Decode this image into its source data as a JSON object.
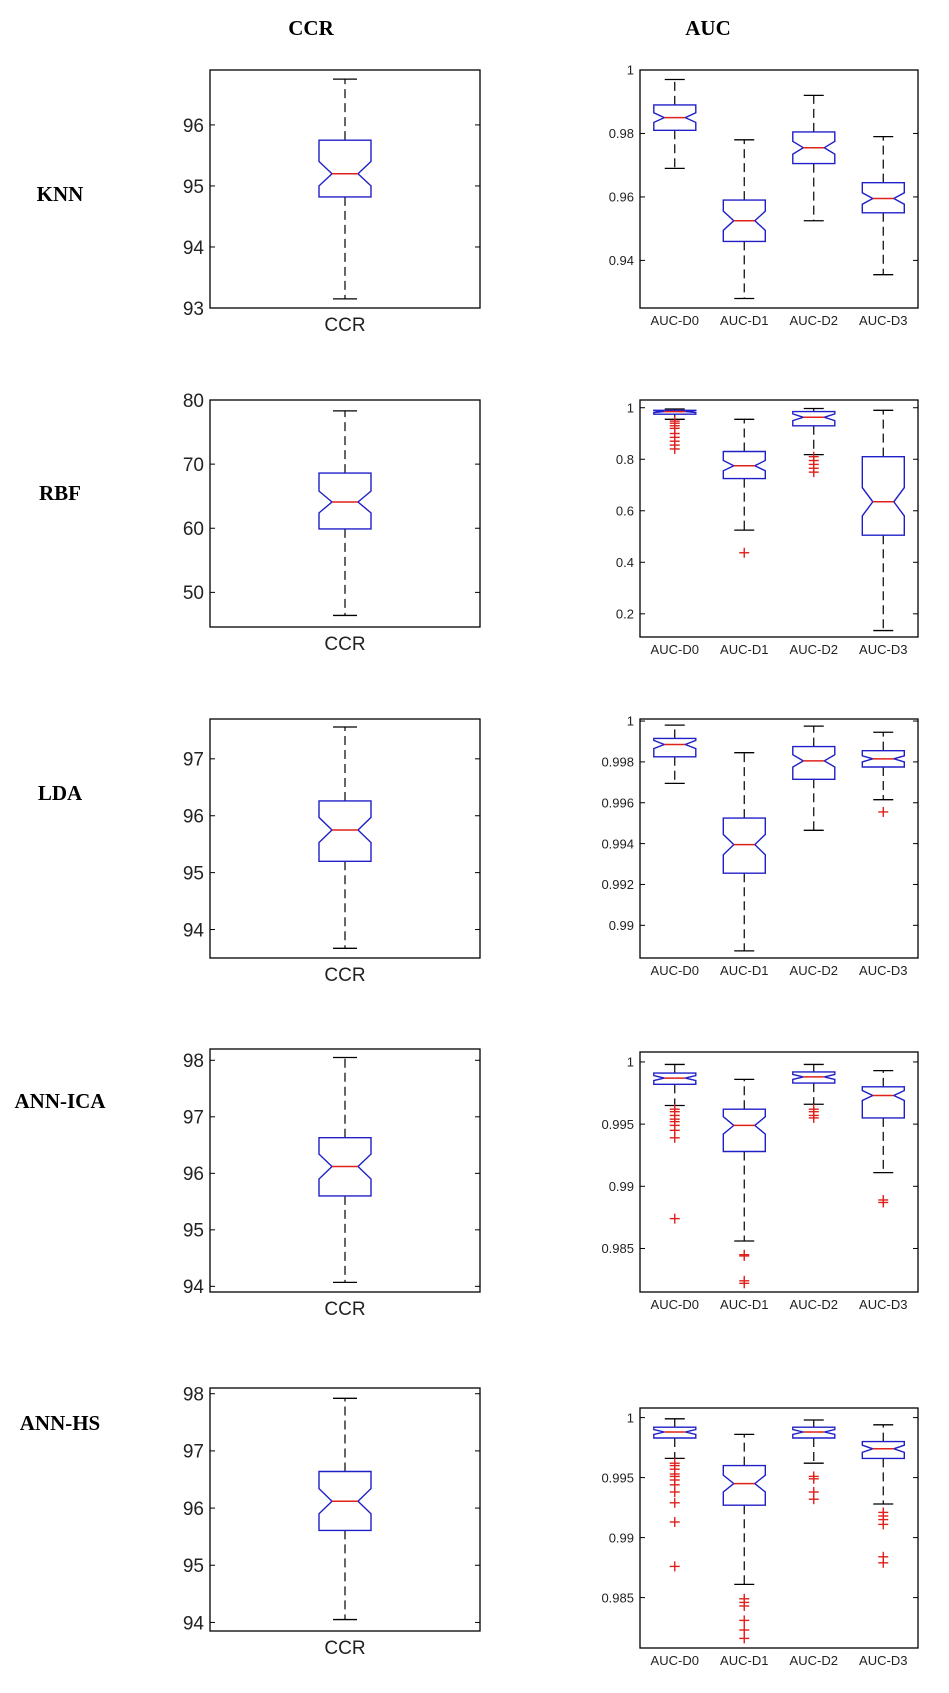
{
  "headers": {
    "ccr": "CCR",
    "auc": "AUC"
  },
  "rows": [
    {
      "label": "KNN"
    },
    {
      "label": "RBF"
    },
    {
      "label": "LDA"
    },
    {
      "label": "ANN-ICA"
    },
    {
      "label": "ANN-HS"
    }
  ],
  "colors": {
    "box": "#1f1fc8",
    "median": "#e0201a",
    "whisker": "#000000",
    "outlier": "#e0201a"
  },
  "chart_data": [
    {
      "type": "box",
      "title": "KNN CCR",
      "categories": [
        "CCR"
      ],
      "ylim": [
        93,
        96.9
      ],
      "ticks": [
        93,
        94,
        95,
        96
      ],
      "ticklabels": [
        "93",
        "94",
        "95",
        "96"
      ],
      "boxes": [
        {
          "q1": 94.82,
          "median": 95.2,
          "q3": 95.75,
          "notch": 0.2,
          "lo": 93.15,
          "hi": 96.75,
          "outliers": []
        }
      ]
    },
    {
      "type": "box",
      "title": "KNN AUC",
      "categories": [
        "AUC-D0",
        "AUC-D1",
        "AUC-D2",
        "AUC-D3"
      ],
      "ylim": [
        0.925,
        1.0
      ],
      "ticks": [
        0.94,
        0.96,
        0.98,
        1
      ],
      "ticklabels": [
        "0.94",
        "0.96",
        "0.98",
        "1"
      ],
      "boxes": [
        {
          "q1": 0.981,
          "median": 0.985,
          "q3": 0.989,
          "notch": 0.0015,
          "lo": 0.969,
          "hi": 0.997,
          "outliers": []
        },
        {
          "q1": 0.946,
          "median": 0.9525,
          "q3": 0.959,
          "notch": 0.003,
          "lo": 0.928,
          "hi": 0.978,
          "outliers": []
        },
        {
          "q1": 0.9705,
          "median": 0.9755,
          "q3": 0.9805,
          "notch": 0.002,
          "lo": 0.9525,
          "hi": 0.992,
          "outliers": []
        },
        {
          "q1": 0.955,
          "median": 0.9595,
          "q3": 0.9645,
          "notch": 0.0018,
          "lo": 0.9355,
          "hi": 0.979,
          "outliers": []
        }
      ]
    },
    {
      "type": "box",
      "title": "RBF CCR",
      "categories": [
        "CCR"
      ],
      "ylim": [
        44.6,
        80
      ],
      "ticks": [
        50,
        60,
        70,
        80
      ],
      "ticklabels": [
        "50",
        "60",
        "70",
        "80"
      ],
      "boxes": [
        {
          "q1": 59.9,
          "median": 64.1,
          "q3": 68.6,
          "notch": 1.7,
          "lo": 46.4,
          "hi": 78.3,
          "outliers": []
        }
      ]
    },
    {
      "type": "box",
      "title": "RBF AUC",
      "categories": [
        "AUC-D0",
        "AUC-D1",
        "AUC-D2",
        "AUC-D3"
      ],
      "ylim": [
        0.11,
        1.03
      ],
      "ticks": [
        0.2,
        0.4,
        0.6,
        0.8,
        1
      ],
      "ticklabels": [
        "0.2",
        "0.4",
        "0.6",
        "0.8",
        "1"
      ],
      "boxes": [
        {
          "q1": 0.975,
          "median": 0.985,
          "q3": 0.99,
          "notch": 0.004,
          "lo": 0.955,
          "hi": 0.995,
          "outliers": [
            0.948,
            0.94,
            0.93,
            0.92,
            0.9,
            0.885,
            0.87,
            0.855,
            0.84
          ]
        },
        {
          "q1": 0.725,
          "median": 0.775,
          "q3": 0.83,
          "notch": 0.02,
          "lo": 0.525,
          "hi": 0.955,
          "outliers": [
            0.437
          ]
        },
        {
          "q1": 0.93,
          "median": 0.963,
          "q3": 0.985,
          "notch": 0.013,
          "lo": 0.818,
          "hi": 0.997,
          "outliers": [
            0.81,
            0.795,
            0.78,
            0.765,
            0.75
          ]
        },
        {
          "q1": 0.505,
          "median": 0.635,
          "q3": 0.81,
          "notch": 0.055,
          "lo": 0.135,
          "hi": 0.99,
          "outliers": []
        }
      ]
    },
    {
      "type": "box",
      "title": "LDA CCR",
      "categories": [
        "CCR"
      ],
      "ylim": [
        93.5,
        97.7
      ],
      "ticks": [
        94,
        95,
        96,
        97
      ],
      "ticklabels": [
        "94",
        "95",
        "96",
        "97"
      ],
      "boxes": [
        {
          "q1": 95.2,
          "median": 95.75,
          "q3": 96.26,
          "notch": 0.22,
          "lo": 93.67,
          "hi": 97.56,
          "outliers": []
        }
      ]
    },
    {
      "type": "box",
      "title": "LDA AUC",
      "categories": [
        "AUC-D0",
        "AUC-D1",
        "AUC-D2",
        "AUC-D3"
      ],
      "ylim": [
        0.9884,
        1.0001
      ],
      "ticks": [
        0.99,
        0.992,
        0.994,
        0.996,
        0.998,
        1
      ],
      "ticklabels": [
        "0.99",
        "0.992",
        "0.994",
        "0.996",
        "0.998",
        "1"
      ],
      "boxes": [
        {
          "q1": 0.99825,
          "median": 0.99885,
          "q3": 0.99915,
          "notch": 0.0002,
          "lo": 0.99695,
          "hi": 0.9998,
          "outliers": []
        },
        {
          "q1": 0.99255,
          "median": 0.99395,
          "q3": 0.99525,
          "notch": 0.0005,
          "lo": 0.98875,
          "hi": 0.99845,
          "outliers": []
        },
        {
          "q1": 0.99715,
          "median": 0.99805,
          "q3": 0.99875,
          "notch": 0.0003,
          "lo": 0.99465,
          "hi": 0.99975,
          "outliers": []
        },
        {
          "q1": 0.99775,
          "median": 0.99815,
          "q3": 0.99855,
          "notch": 0.00015,
          "lo": 0.99615,
          "hi": 0.99945,
          "outliers": [
            0.99555
          ]
        }
      ]
    },
    {
      "type": "box",
      "title": "ANN-ICA CCR",
      "categories": [
        "CCR"
      ],
      "ylim": [
        93.9,
        98.2
      ],
      "ticks": [
        94,
        95,
        96,
        97,
        98
      ],
      "ticklabels": [
        "94",
        "95",
        "96",
        "97",
        "98"
      ],
      "boxes": [
        {
          "q1": 95.6,
          "median": 96.12,
          "q3": 96.63,
          "notch": 0.22,
          "lo": 94.07,
          "hi": 98.05,
          "outliers": []
        }
      ]
    },
    {
      "type": "box",
      "title": "ANN-ICA AUC",
      "categories": [
        "AUC-D0",
        "AUC-D1",
        "AUC-D2",
        "AUC-D3"
      ],
      "ylim": [
        0.9815,
        1.0008
      ],
      "ticks": [
        0.985,
        0.99,
        0.995,
        1
      ],
      "ticklabels": [
        "0.985",
        "0.99",
        "0.995",
        "1"
      ],
      "boxes": [
        {
          "q1": 0.9982,
          "median": 0.9987,
          "q3": 0.9991,
          "notch": 0.0002,
          "lo": 0.9965,
          "hi": 0.9998,
          "outliers": [
            0.9962,
            0.996,
            0.9957,
            0.9954,
            0.9952,
            0.9949,
            0.9945,
            0.9939,
            0.9874
          ]
        },
        {
          "q1": 0.9928,
          "median": 0.9949,
          "q3": 0.9962,
          "notch": 0.0007,
          "lo": 0.9856,
          "hi": 0.9986,
          "outliers": [
            0.9845,
            0.9844,
            0.9824,
            0.9822
          ]
        },
        {
          "q1": 0.9983,
          "median": 0.9988,
          "q3": 0.9992,
          "notch": 0.0002,
          "lo": 0.9966,
          "hi": 0.9998,
          "outliers": [
            0.9962,
            0.996,
            0.9957,
            0.9955
          ]
        },
        {
          "q1": 0.9955,
          "median": 0.9973,
          "q3": 0.998,
          "notch": 0.0004,
          "lo": 0.9911,
          "hi": 0.9993,
          "outliers": [
            0.9889,
            0.9887
          ]
        }
      ]
    },
    {
      "type": "box",
      "title": "ANN-HS CCR",
      "categories": [
        "CCR"
      ],
      "ylim": [
        93.85,
        98.1
      ],
      "ticks": [
        94,
        95,
        96,
        97,
        98
      ],
      "ticklabels": [
        "94",
        "95",
        "96",
        "97",
        "98"
      ],
      "boxes": [
        {
          "q1": 95.61,
          "median": 96.12,
          "q3": 96.64,
          "notch": 0.22,
          "lo": 94.05,
          "hi": 97.92,
          "outliers": []
        }
      ]
    },
    {
      "type": "box",
      "title": "ANN-HS AUC",
      "categories": [
        "AUC-D0",
        "AUC-D1",
        "AUC-D2",
        "AUC-D3"
      ],
      "ylim": [
        0.9808,
        1.0008
      ],
      "ticks": [
        0.985,
        0.99,
        0.995,
        1
      ],
      "ticklabels": [
        "0.985",
        "0.99",
        "0.995",
        "1"
      ],
      "boxes": [
        {
          "q1": 0.9983,
          "median": 0.9988,
          "q3": 0.9992,
          "notch": 0.0002,
          "lo": 0.9966,
          "hi": 0.9999,
          "outliers": [
            0.9962,
            0.996,
            0.9957,
            0.9953,
            0.9951,
            0.9948,
            0.9944,
            0.9938,
            0.9929,
            0.9913,
            0.9876
          ]
        },
        {
          "q1": 0.9927,
          "median": 0.9945,
          "q3": 0.996,
          "notch": 0.0007,
          "lo": 0.9861,
          "hi": 0.9986,
          "outliers": [
            0.9849,
            0.9846,
            0.9843,
            0.9831,
            0.9823,
            0.9816
          ]
        },
        {
          "q1": 0.9983,
          "median": 0.9988,
          "q3": 0.9992,
          "notch": 0.0002,
          "lo": 0.9962,
          "hi": 0.9998,
          "outliers": [
            0.9951,
            0.9949,
            0.9938,
            0.9932
          ]
        },
        {
          "q1": 0.9966,
          "median": 0.9974,
          "q3": 0.998,
          "notch": 0.0003,
          "lo": 0.9928,
          "hi": 0.9994,
          "outliers": [
            0.9921,
            0.9918,
            0.9915,
            0.9911,
            0.9884,
            0.9879
          ]
        }
      ]
    }
  ]
}
